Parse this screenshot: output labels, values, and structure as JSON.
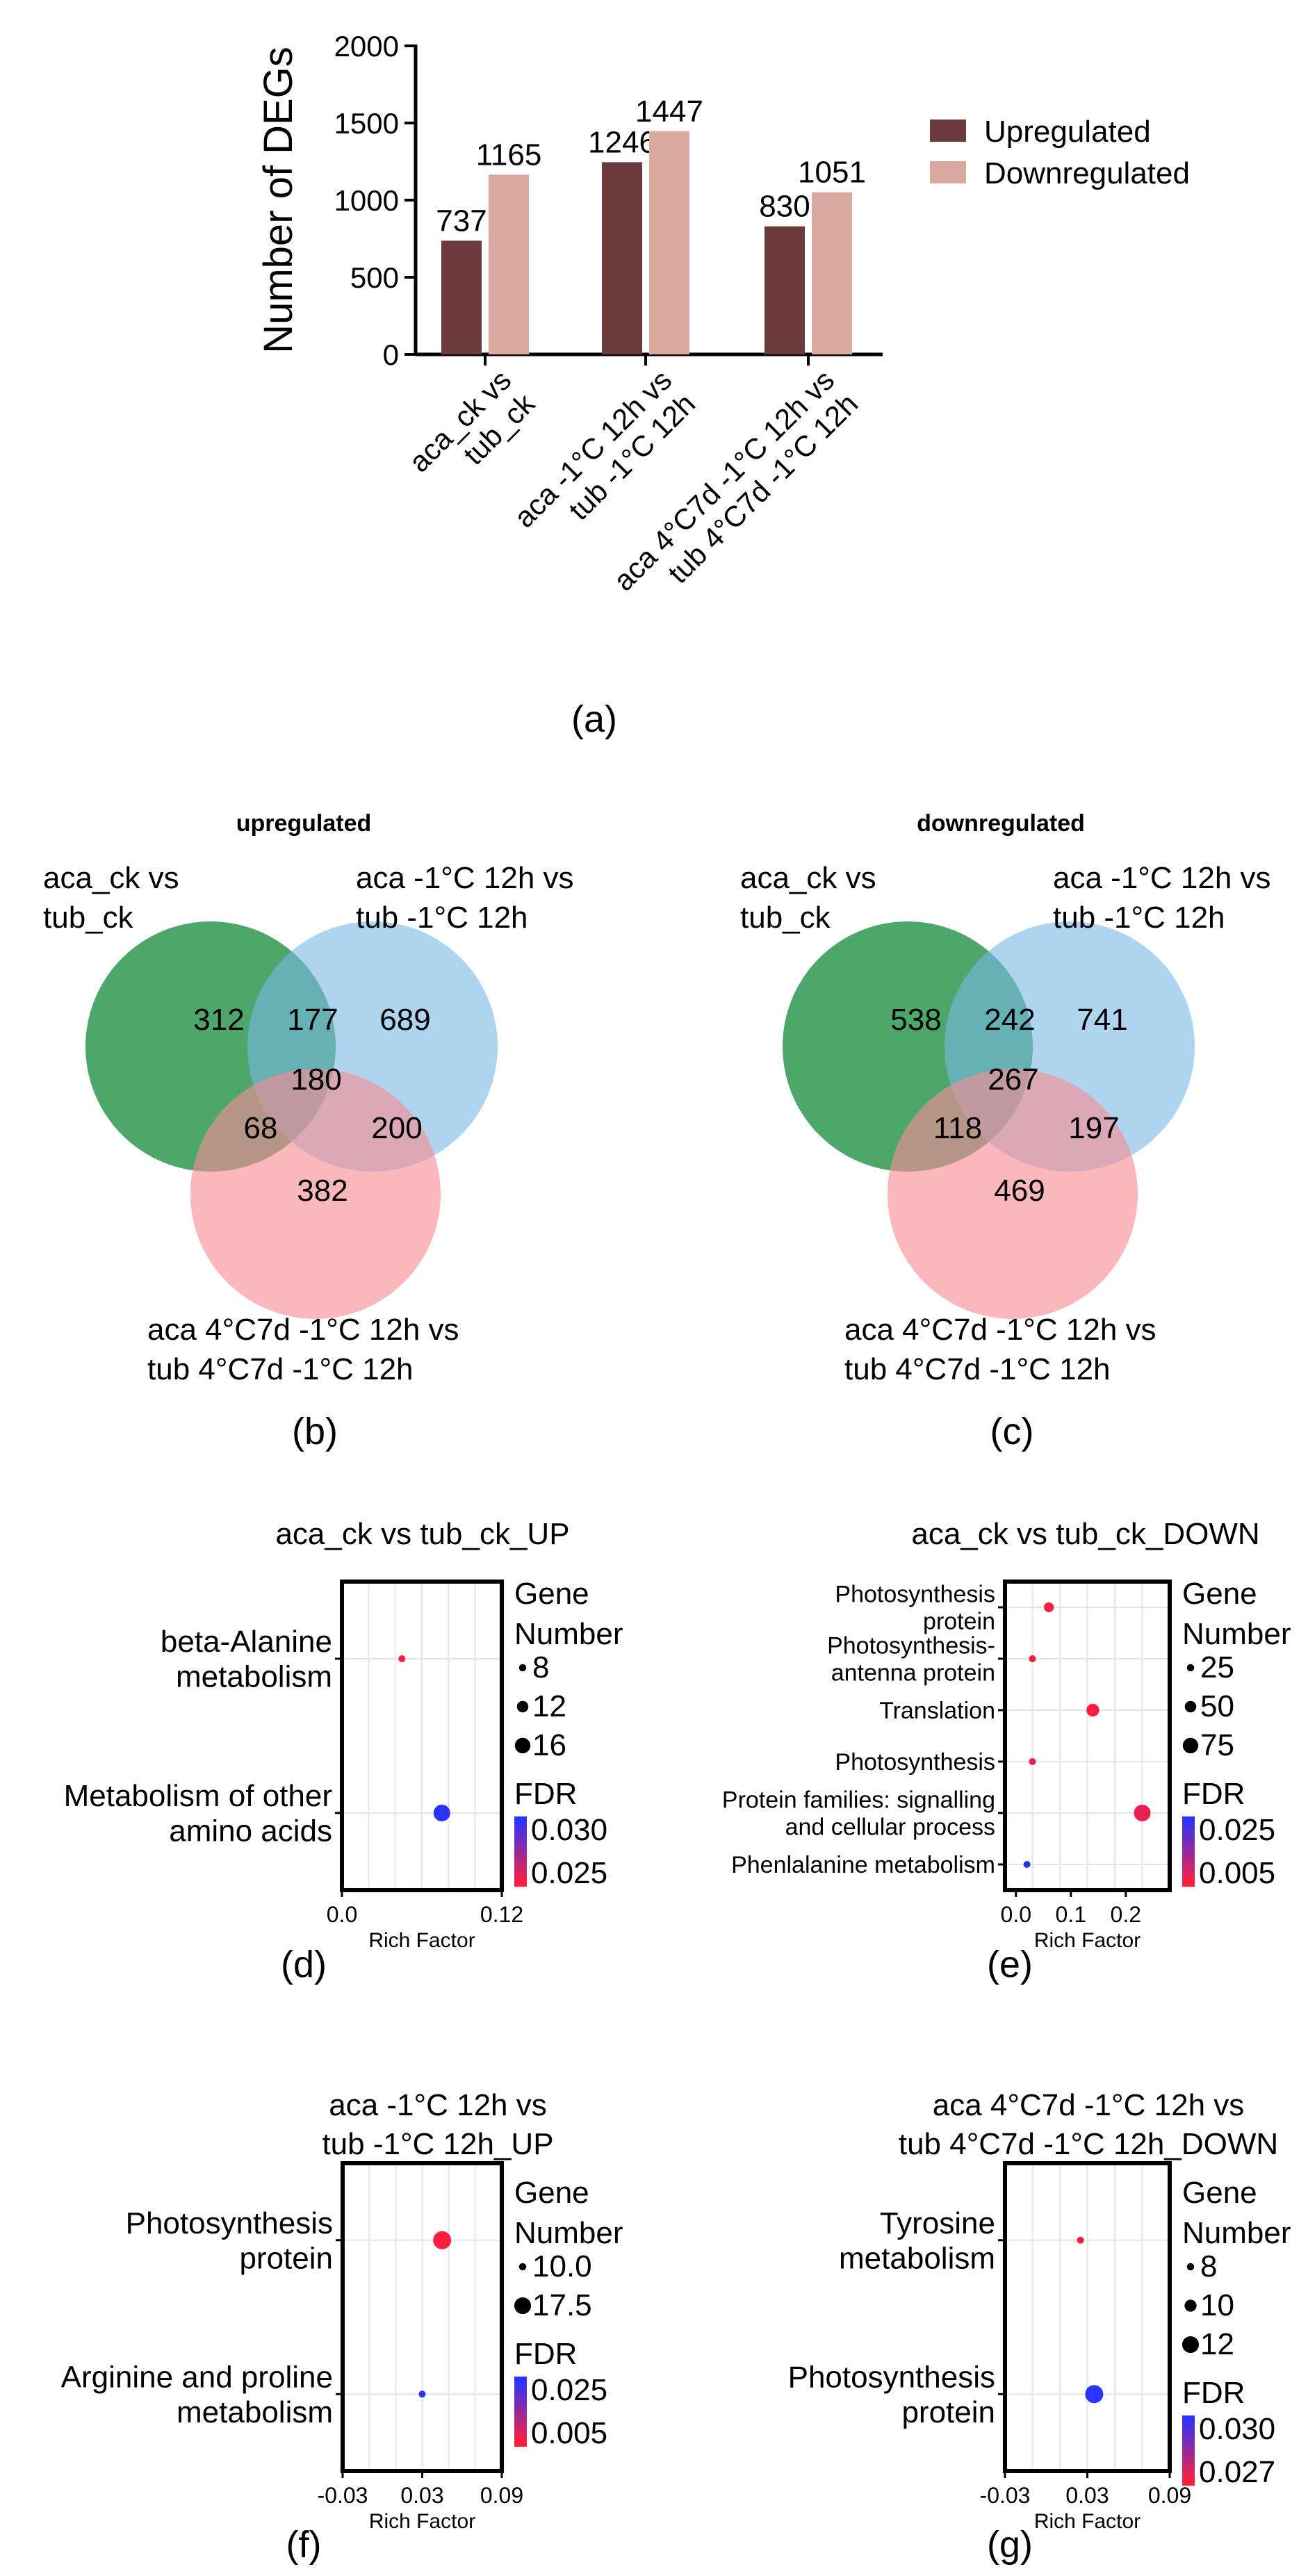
{
  "colors": {
    "upregulated": "#6a3a3c",
    "downregulated": "#d9a9a0",
    "venn_a": "#3a9c5a",
    "venn_b": "#7ab8e6",
    "venn_c": "#f78c94",
    "fdr_low": "#ff1f3d",
    "fdr_high": "#2a33ff"
  },
  "chart_data": [
    {
      "id": "a",
      "type": "bar",
      "panel_label": "(a)",
      "ylabel": "Number of  DEGs",
      "ylim": [
        0,
        2000
      ],
      "yticks": [
        0,
        500,
        1000,
        1500,
        2000
      ],
      "categories": [
        [
          "aca_ck vs",
          "tub_ck"
        ],
        [
          "aca -1°C 12h vs",
          "tub -1°C 12h"
        ],
        [
          "aca 4°C7d -1°C 12h vs",
          "tub 4°C7d -1°C 12h"
        ]
      ],
      "series": [
        {
          "name": "Upregulated",
          "values": [
            737,
            1246,
            830
          ]
        },
        {
          "name": "Downregulated",
          "values": [
            1165,
            1447,
            1051
          ]
        }
      ],
      "legend": "right"
    },
    {
      "id": "b",
      "type": "venn",
      "panel_label": "(b)",
      "title": "upregulated",
      "sets": [
        {
          "label": [
            "aca_ck vs",
            "tub_ck"
          ]
        },
        {
          "label": [
            "aca  -1°C 12h vs",
            "tub  -1°C 12h"
          ]
        },
        {
          "label": [
            "aca 4°C7d -1°C 12h vs",
            "tub 4°C7d -1°C 12h"
          ]
        }
      ],
      "regions": {
        "A": 312,
        "AB": 177,
        "B": 689,
        "ABC": 180,
        "AC": 68,
        "BC": 200,
        "C": 382
      }
    },
    {
      "id": "c",
      "type": "venn",
      "panel_label": "(c)",
      "title": "downregulated",
      "sets": [
        {
          "label": [
            "aca_ck vs",
            "tub_ck"
          ]
        },
        {
          "label": [
            "aca  -1°C 12h vs",
            "tub  -1°C 12h"
          ]
        },
        {
          "label": [
            "aca 4°C7d -1°C 12h vs",
            "tub 4°C7d -1°C 12h"
          ]
        }
      ],
      "regions": {
        "A": 538,
        "AB": 242,
        "B": 741,
        "ABC": 267,
        "AC": 118,
        "BC": 197,
        "C": 469
      }
    },
    {
      "id": "d",
      "type": "scatter",
      "panel_label": "(d)",
      "title": [
        "aca_ck vs tub_ck_UP"
      ],
      "xlabel": "Rich Factor",
      "xlim": [
        0,
        0.12
      ],
      "xticks": [
        "0.0",
        "0.12"
      ],
      "terms": [
        {
          "label": [
            "beta-Alanine",
            "metabolism"
          ],
          "rich": 0.045,
          "genes": 8,
          "fdr": 0.025
        },
        {
          "label": [
            "Metabolism of other",
            "amino acids"
          ],
          "rich": 0.075,
          "genes": 16,
          "fdr": 0.03
        }
      ],
      "gene_legend": {
        "title": [
          "Gene",
          "Number"
        ],
        "levels": [
          "8",
          "12",
          "16"
        ],
        "values": [
          8,
          12,
          16
        ]
      },
      "fdr_legend": {
        "title": "FDR",
        "labels": [
          "0.030",
          "0.025"
        ],
        "range": [
          0.025,
          0.03
        ]
      }
    },
    {
      "id": "e",
      "type": "scatter",
      "panel_label": "(e)",
      "title": [
        "aca_ck vs tub_ck_DOWN"
      ],
      "xlabel": "Rich Factor",
      "xlim": [
        -0.02,
        0.28
      ],
      "xticks": [
        "0.0",
        "0.1",
        "0.2"
      ],
      "terms": [
        {
          "label": [
            "Photosynthesis",
            "protein"
          ],
          "rich": 0.06,
          "genes": 40,
          "fdr": 0.005
        },
        {
          "label": [
            "Photosynthesis-",
            "antenna protein"
          ],
          "rich": 0.03,
          "genes": 25,
          "fdr": 0.005
        },
        {
          "label": [
            "Translation"
          ],
          "rich": 0.14,
          "genes": 55,
          "fdr": 0.005
        },
        {
          "label": [
            "Photosynthesis"
          ],
          "rich": 0.03,
          "genes": 25,
          "fdr": 0.006
        },
        {
          "label": [
            "Protein families: signalling",
            "and cellular process"
          ],
          "rich": 0.23,
          "genes": 75,
          "fdr": 0.007
        },
        {
          "label": [
            "Phenlalanine metabolism"
          ],
          "rich": 0.02,
          "genes": 20,
          "fdr": 0.025
        }
      ],
      "gene_legend": {
        "title": [
          "Gene",
          "Number"
        ],
        "levels": [
          "25",
          "50",
          "75"
        ],
        "values": [
          25,
          50,
          75
        ]
      },
      "fdr_legend": {
        "title": "FDR",
        "labels": [
          "0.025",
          "0.005"
        ],
        "range": [
          0.005,
          0.025
        ]
      }
    },
    {
      "id": "f",
      "type": "scatter",
      "panel_label": "(f)",
      "title": [
        "aca  -1°C 12h vs",
        "tub  -1°C 12h_UP"
      ],
      "xlabel": "Rich Factor",
      "xlim": [
        -0.03,
        0.09
      ],
      "xticks": [
        "-0.03",
        "0.03",
        "0.09"
      ],
      "terms": [
        {
          "label": [
            "Photosynthesis",
            "protein"
          ],
          "rich": 0.045,
          "genes": 17.5,
          "fdr": 0.005
        },
        {
          "label": [
            "Arginine and proline",
            "metabolism"
          ],
          "rich": 0.03,
          "genes": 10,
          "fdr": 0.025
        }
      ],
      "gene_legend": {
        "title": [
          "Gene",
          "Number"
        ],
        "levels": [
          "10.0",
          "17.5"
        ],
        "values": [
          10,
          17.5
        ]
      },
      "fdr_legend": {
        "title": "FDR",
        "labels": [
          "0.025",
          "0.005"
        ],
        "range": [
          0.005,
          0.025
        ]
      }
    },
    {
      "id": "g",
      "type": "scatter",
      "panel_label": "(g)",
      "title": [
        "aca 4°C7d -1°C 12h vs",
        "tub 4°C7d -1°C 12h_DOWN"
      ],
      "xlabel": "Rich Factor",
      "xlim": [
        -0.03,
        0.09
      ],
      "xticks": [
        "-0.03",
        "0.03",
        "0.09"
      ],
      "terms": [
        {
          "label": [
            "Tyrosine",
            "metabolism"
          ],
          "rich": 0.025,
          "genes": 8,
          "fdr": 0.027
        },
        {
          "label": [
            "Photosynthesis",
            "protein"
          ],
          "rich": 0.035,
          "genes": 12,
          "fdr": 0.03
        }
      ],
      "gene_legend": {
        "title": [
          "Gene",
          "Number"
        ],
        "levels": [
          "8",
          "10",
          "12"
        ],
        "values": [
          8,
          10,
          12
        ]
      },
      "fdr_legend": {
        "title": "FDR",
        "labels": [
          "0.030",
          "0.027"
        ],
        "range": [
          0.027,
          0.03
        ]
      }
    }
  ]
}
